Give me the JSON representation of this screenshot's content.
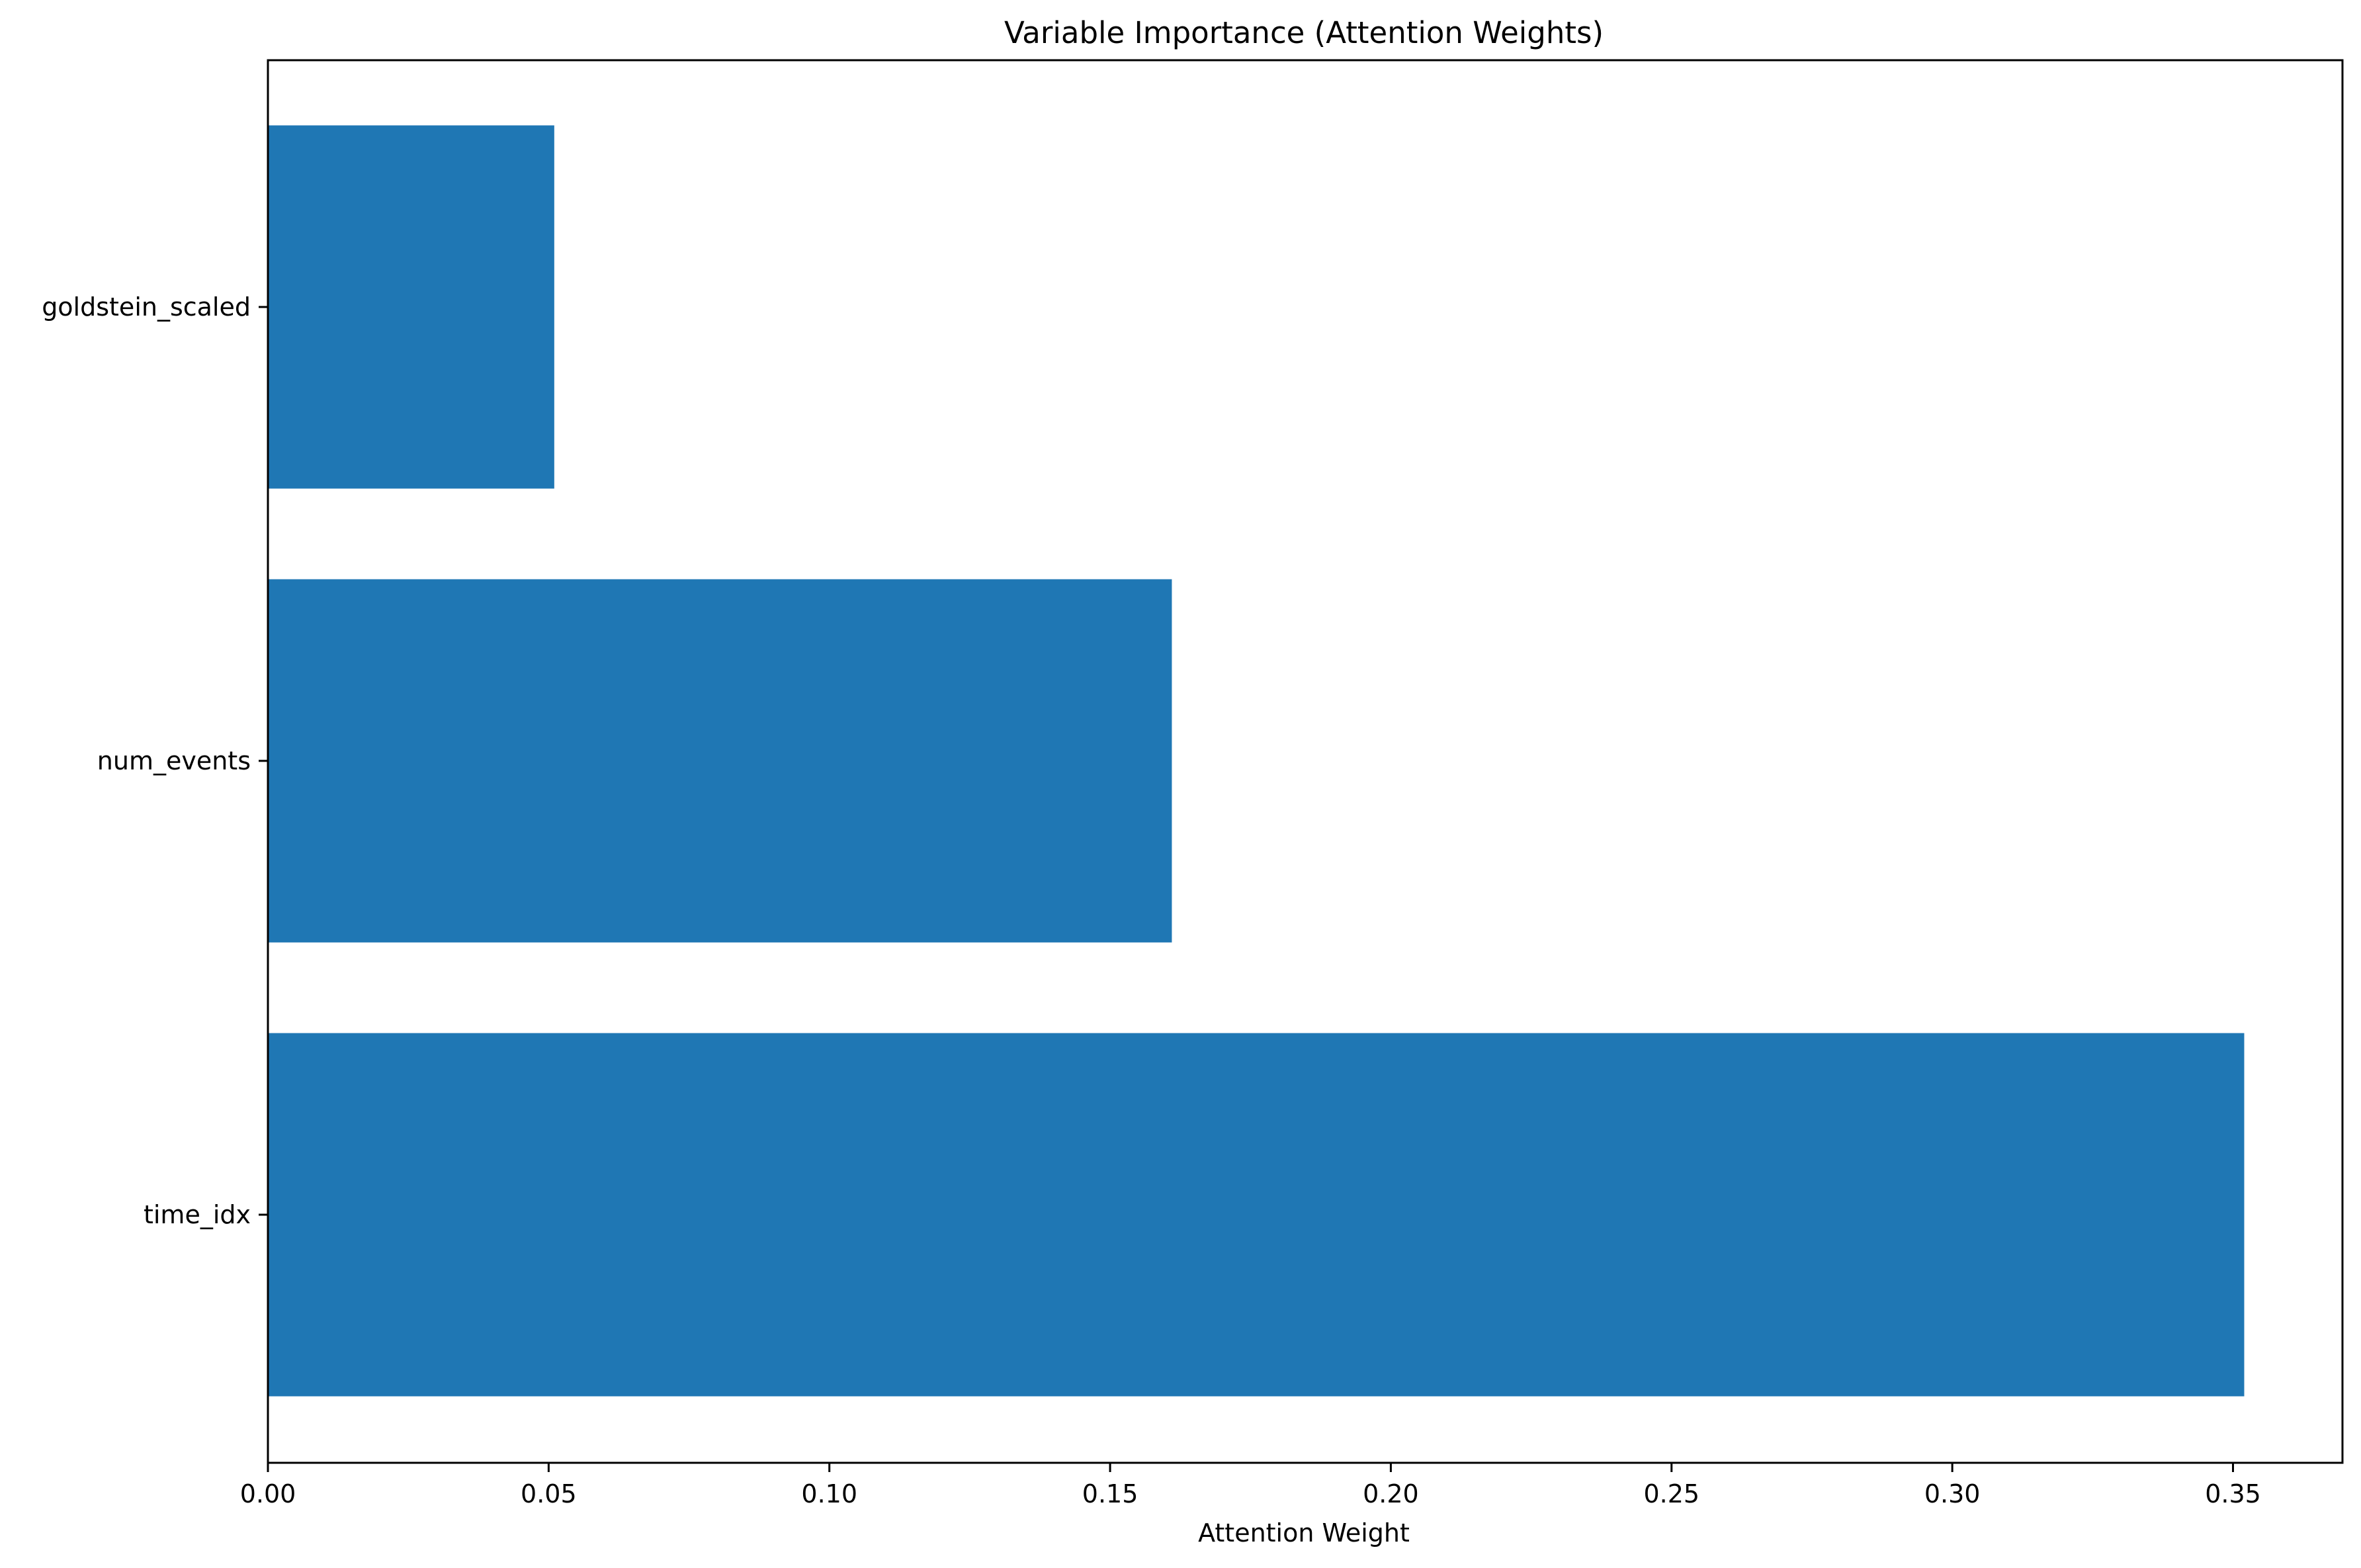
{
  "chart_data": {
    "type": "bar",
    "orientation": "horizontal",
    "title": "Variable Importance (Attention Weights)",
    "xlabel": "Attention Weight",
    "ylabel": "",
    "categories": [
      "goldstein_scaled",
      "num_events",
      "time_idx"
    ],
    "values": [
      0.051,
      0.161,
      0.352
    ],
    "xlim": [
      0,
      0.3695
    ],
    "xticks": [
      0.0,
      0.05,
      0.1,
      0.15,
      0.2,
      0.25,
      0.3,
      0.35
    ],
    "xtick_labels": [
      "0.00",
      "0.05",
      "0.10",
      "0.15",
      "0.20",
      "0.25",
      "0.30",
      "0.35"
    ],
    "grid": false,
    "legend": "none",
    "bar_color": "#1f77b4"
  }
}
